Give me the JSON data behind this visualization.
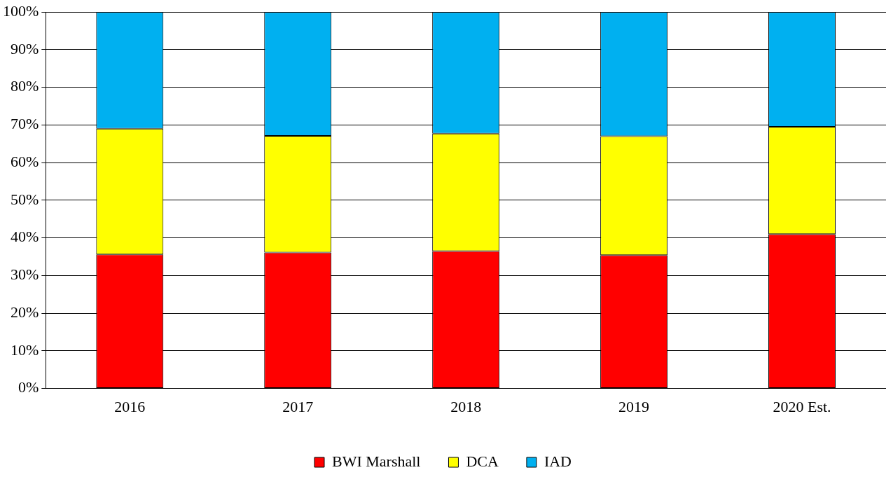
{
  "chart_data": {
    "type": "bar",
    "stacked": true,
    "categories": [
      "2016",
      "2017",
      "2018",
      "2019",
      "2020 Est."
    ],
    "series": [
      {
        "name": "BWI Marshall",
        "color": "#ff0000",
        "values": [
          35.6,
          36.1,
          36.5,
          35.4,
          41.0
        ]
      },
      {
        "name": "DCA",
        "color": "#ffff00",
        "values": [
          33.4,
          31.0,
          31.2,
          31.6,
          28.5
        ]
      },
      {
        "name": "IAD",
        "color": "#00b0f0",
        "values": [
          31.0,
          32.9,
          32.3,
          33.0,
          30.5
        ]
      }
    ],
    "ylim": [
      0,
      100
    ],
    "yticks": [
      {
        "value": 0,
        "label": "0%"
      },
      {
        "value": 10,
        "label": "10%"
      },
      {
        "value": 20,
        "label": "20%"
      },
      {
        "value": 30,
        "label": "30%"
      },
      {
        "value": 40,
        "label": "40%"
      },
      {
        "value": 50,
        "label": "50%"
      },
      {
        "value": 60,
        "label": "60%"
      },
      {
        "value": 70,
        "label": "70%"
      },
      {
        "value": 80,
        "label": "80%"
      },
      {
        "value": 90,
        "label": "90%"
      },
      {
        "value": 100,
        "label": "100%"
      }
    ],
    "grid": "y",
    "legend": "bottom"
  }
}
